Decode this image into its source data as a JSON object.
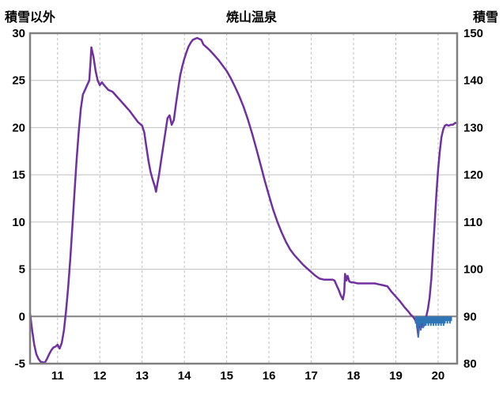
{
  "header": {
    "left_axis_label": "積雪以外",
    "title": "焼山温泉",
    "right_axis_label": "積雪"
  },
  "colors": {
    "line": "#7030A0",
    "bar": "#2E75B6",
    "grid": "#BFBFBF",
    "border": "#808080",
    "zero_line": "#808080",
    "text": "#000000",
    "background": "#FFFFFF"
  },
  "chart_data": {
    "type": "line",
    "title": "焼山温泉",
    "x_axis": {
      "min": 10.35,
      "max": 20.45,
      "ticks": [
        11,
        12,
        13,
        14,
        15,
        16,
        17,
        18,
        19,
        20
      ]
    },
    "left_axis": {
      "label": "積雪以外",
      "min": -5,
      "max": 30,
      "ticks": [
        30,
        25,
        20,
        15,
        10,
        5,
        0,
        -5
      ]
    },
    "right_axis": {
      "label": "積雪",
      "min": 80,
      "max": 150,
      "ticks": [
        150,
        140,
        130,
        120,
        110,
        100,
        90,
        80
      ]
    },
    "grid": {
      "horizontal": "solid",
      "vertical": "dashed"
    },
    "series": [
      {
        "name": "積雪以外",
        "type": "line",
        "axis": "left",
        "color": "#7030A0",
        "points": [
          [
            10.35,
            0.3
          ],
          [
            10.4,
            -1.5
          ],
          [
            10.45,
            -3.0
          ],
          [
            10.5,
            -4.0
          ],
          [
            10.55,
            -4.5
          ],
          [
            10.6,
            -4.8
          ],
          [
            10.7,
            -4.9
          ],
          [
            10.75,
            -4.5
          ],
          [
            10.8,
            -4.0
          ],
          [
            10.85,
            -3.6
          ],
          [
            10.9,
            -3.3
          ],
          [
            10.95,
            -3.2
          ],
          [
            11.0,
            -3.0
          ],
          [
            11.05,
            -3.4
          ],
          [
            11.1,
            -2.8
          ],
          [
            11.15,
            -1.5
          ],
          [
            11.2,
            0.5
          ],
          [
            11.25,
            3.0
          ],
          [
            11.3,
            6.0
          ],
          [
            11.35,
            9.5
          ],
          [
            11.4,
            13.0
          ],
          [
            11.45,
            16.5
          ],
          [
            11.5,
            19.5
          ],
          [
            11.55,
            22.0
          ],
          [
            11.6,
            23.5
          ],
          [
            11.65,
            24.0
          ],
          [
            11.7,
            24.5
          ],
          [
            11.75,
            25.0
          ],
          [
            11.78,
            27.0
          ],
          [
            11.8,
            28.5
          ],
          [
            11.85,
            27.5
          ],
          [
            11.9,
            26.0
          ],
          [
            11.95,
            25.0
          ],
          [
            12.0,
            24.5
          ],
          [
            12.05,
            24.8
          ],
          [
            12.1,
            24.5
          ],
          [
            12.2,
            24.0
          ],
          [
            12.3,
            23.8
          ],
          [
            12.4,
            23.3
          ],
          [
            12.5,
            22.8
          ],
          [
            12.6,
            22.3
          ],
          [
            12.7,
            21.8
          ],
          [
            12.8,
            21.2
          ],
          [
            12.9,
            20.6
          ],
          [
            13.0,
            20.2
          ],
          [
            13.05,
            19.5
          ],
          [
            13.1,
            18.0
          ],
          [
            13.15,
            16.5
          ],
          [
            13.2,
            15.3
          ],
          [
            13.25,
            14.5
          ],
          [
            13.3,
            13.8
          ],
          [
            13.33,
            13.2
          ],
          [
            13.36,
            14.0
          ],
          [
            13.4,
            15.0
          ],
          [
            13.45,
            16.5
          ],
          [
            13.5,
            18.0
          ],
          [
            13.55,
            19.5
          ],
          [
            13.6,
            21.0
          ],
          [
            13.65,
            21.3
          ],
          [
            13.7,
            20.3
          ],
          [
            13.75,
            20.8
          ],
          [
            13.8,
            22.5
          ],
          [
            13.85,
            24.0
          ],
          [
            13.9,
            25.5
          ],
          [
            13.95,
            26.5
          ],
          [
            14.0,
            27.3
          ],
          [
            14.05,
            28.0
          ],
          [
            14.1,
            28.6
          ],
          [
            14.15,
            29.0
          ],
          [
            14.2,
            29.3
          ],
          [
            14.3,
            29.5
          ],
          [
            14.4,
            29.3
          ],
          [
            14.45,
            28.8
          ],
          [
            14.5,
            28.6
          ],
          [
            14.6,
            28.2
          ],
          [
            14.7,
            27.7
          ],
          [
            14.8,
            27.2
          ],
          [
            14.9,
            26.6
          ],
          [
            15.0,
            26.0
          ],
          [
            15.1,
            25.2
          ],
          [
            15.2,
            24.3
          ],
          [
            15.3,
            23.3
          ],
          [
            15.4,
            22.2
          ],
          [
            15.5,
            20.9
          ],
          [
            15.6,
            19.4
          ],
          [
            15.7,
            17.8
          ],
          [
            15.8,
            16.1
          ],
          [
            15.9,
            14.4
          ],
          [
            16.0,
            12.8
          ],
          [
            16.1,
            11.3
          ],
          [
            16.2,
            10.0
          ],
          [
            16.3,
            8.9
          ],
          [
            16.4,
            7.9
          ],
          [
            16.5,
            7.1
          ],
          [
            16.6,
            6.5
          ],
          [
            16.7,
            6.0
          ],
          [
            16.8,
            5.5
          ],
          [
            16.9,
            5.1
          ],
          [
            17.0,
            4.7
          ],
          [
            17.1,
            4.3
          ],
          [
            17.2,
            4.0
          ],
          [
            17.3,
            3.9
          ],
          [
            17.4,
            3.9
          ],
          [
            17.5,
            3.9
          ],
          [
            17.55,
            3.8
          ],
          [
            17.6,
            3.3
          ],
          [
            17.65,
            2.8
          ],
          [
            17.7,
            2.2
          ],
          [
            17.75,
            1.8
          ],
          [
            17.78,
            2.5
          ],
          [
            17.8,
            4.5
          ],
          [
            17.83,
            3.8
          ],
          [
            17.86,
            4.3
          ],
          [
            17.9,
            3.7
          ],
          [
            17.95,
            3.6
          ],
          [
            18.0,
            3.6
          ],
          [
            18.1,
            3.5
          ],
          [
            18.2,
            3.5
          ],
          [
            18.3,
            3.5
          ],
          [
            18.4,
            3.5
          ],
          [
            18.5,
            3.5
          ],
          [
            18.6,
            3.4
          ],
          [
            18.7,
            3.3
          ],
          [
            18.8,
            3.2
          ],
          [
            18.85,
            2.9
          ],
          [
            18.9,
            2.6
          ],
          [
            19.0,
            2.1
          ],
          [
            19.1,
            1.6
          ],
          [
            19.2,
            1.0
          ],
          [
            19.3,
            0.5
          ],
          [
            19.35,
            0.2
          ],
          [
            19.4,
            0.0
          ],
          [
            19.45,
            -0.3
          ],
          [
            19.5,
            -0.8
          ],
          [
            19.53,
            -2.0
          ],
          [
            19.56,
            -0.5
          ],
          [
            19.6,
            -1.2
          ],
          [
            19.63,
            -0.4
          ],
          [
            19.66,
            -1.0
          ],
          [
            19.7,
            -0.3
          ],
          [
            19.73,
            0.2
          ],
          [
            19.76,
            0.8
          ],
          [
            19.8,
            2.0
          ],
          [
            19.84,
            4.0
          ],
          [
            19.88,
            7.0
          ],
          [
            19.92,
            10.0
          ],
          [
            19.96,
            13.0
          ],
          [
            20.0,
            15.5
          ],
          [
            20.04,
            17.5
          ],
          [
            20.08,
            19.0
          ],
          [
            20.12,
            19.8
          ],
          [
            20.16,
            20.2
          ],
          [
            20.2,
            20.3
          ],
          [
            20.25,
            20.2
          ],
          [
            20.3,
            20.3
          ],
          [
            20.35,
            20.3
          ],
          [
            20.4,
            20.5
          ],
          [
            20.45,
            20.5
          ]
        ]
      },
      {
        "name": "積雪",
        "type": "bar",
        "axis": "right",
        "baseline": 90,
        "color": "#2E75B6",
        "points": [
          [
            19.47,
            88.5
          ],
          [
            19.5,
            87.5
          ],
          [
            19.53,
            85.5
          ],
          [
            19.56,
            88.0
          ],
          [
            19.59,
            87.0
          ],
          [
            19.62,
            88.5
          ],
          [
            19.65,
            87.5
          ],
          [
            19.68,
            88.0
          ],
          [
            19.71,
            88.0
          ],
          [
            19.74,
            88.5
          ],
          [
            19.77,
            88.0
          ],
          [
            19.8,
            88.5
          ],
          [
            19.83,
            88.0
          ],
          [
            19.86,
            88.5
          ],
          [
            19.89,
            88.0
          ],
          [
            19.92,
            88.5
          ],
          [
            19.95,
            88.0
          ],
          [
            19.98,
            88.5
          ],
          [
            20.01,
            88.0
          ],
          [
            20.04,
            88.5
          ],
          [
            20.07,
            88.0
          ],
          [
            20.1,
            88.5
          ],
          [
            20.13,
            88.0
          ],
          [
            20.16,
            88.5
          ],
          [
            20.19,
            89.0
          ],
          [
            20.22,
            88.5
          ],
          [
            20.25,
            89.0
          ],
          [
            20.28,
            88.5
          ],
          [
            20.31,
            89.0
          ]
        ]
      }
    ]
  }
}
